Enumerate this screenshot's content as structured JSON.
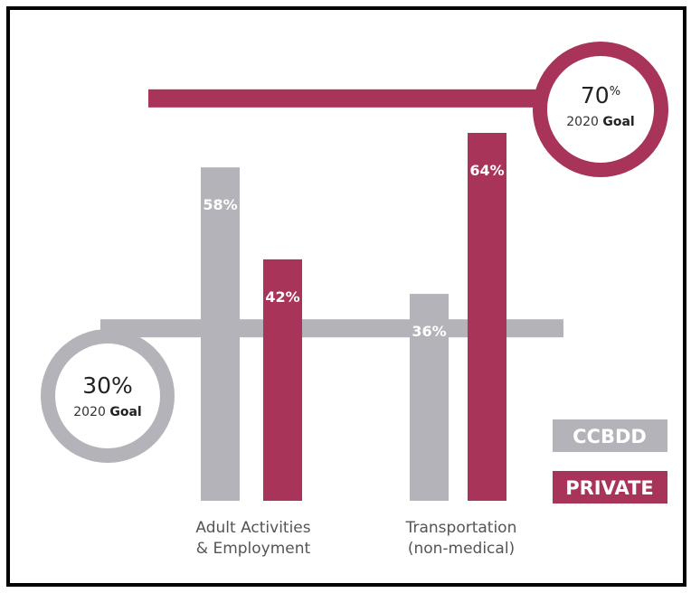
{
  "chart_data": {
    "type": "bar",
    "categories": [
      [
        "Adult Activities",
        "& Employment"
      ],
      [
        "Transportation",
        "(non-medical)"
      ]
    ],
    "series": [
      {
        "name": "CCBDD",
        "values": [
          58,
          36
        ]
      },
      {
        "name": "PRIVATE",
        "values": [
          42,
          64
        ]
      }
    ],
    "value_labels": [
      [
        "58%",
        "36%"
      ],
      [
        "42%",
        "64%"
      ]
    ],
    "ylim": [
      0,
      100
    ],
    "goals": [
      {
        "series": "CCBDD",
        "value": 30,
        "pct": "30",
        "pct_suffix": "%",
        "label_year": "2020",
        "label_word": "Goal"
      },
      {
        "series": "PRIVATE",
        "value": 70,
        "pct": "70",
        "pct_suffix": "%",
        "label_year": "2020",
        "label_word": "Goal"
      }
    ],
    "legend": [
      "CCBDD",
      "PRIVATE"
    ],
    "colors": {
      "CCBDD": "#b3b3b9",
      "PRIVATE": "#a8345a"
    }
  }
}
